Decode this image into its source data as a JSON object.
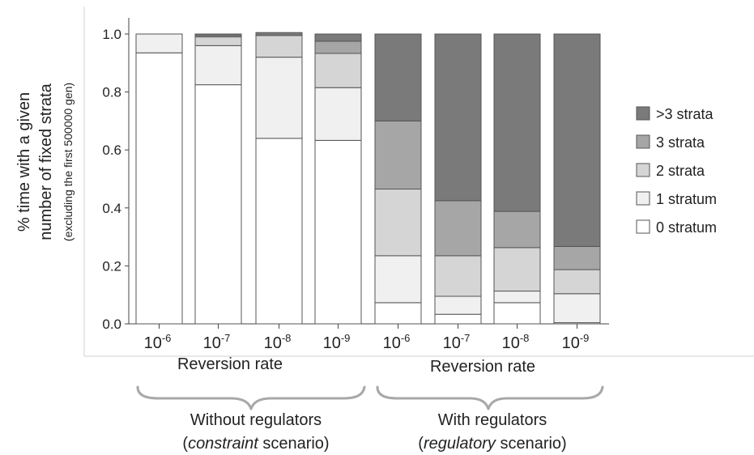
{
  "chart_data": {
    "type": "bar",
    "stacked": true,
    "ylabel_lines": [
      "% time with a given",
      "number of fixed strata"
    ],
    "ylabel_sub": "(excluding the first 500000 gen)",
    "ylim": [
      0,
      1
    ],
    "yticks": [
      "0.0",
      "0.2",
      "0.4",
      "0.6",
      "0.8",
      "1.0"
    ],
    "categories": [
      "10-6",
      "10-7",
      "10-8",
      "10-9",
      "10-6",
      "10-7",
      "10-8",
      "10-9"
    ],
    "category_labels": [
      {
        "base": "10",
        "exp": "-6"
      },
      {
        "base": "10",
        "exp": "-7"
      },
      {
        "base": "10",
        "exp": "-8"
      },
      {
        "base": "10",
        "exp": "-9"
      },
      {
        "base": "10",
        "exp": "-6"
      },
      {
        "base": "10",
        "exp": "-7"
      },
      {
        "base": "10",
        "exp": "-8"
      },
      {
        "base": "10",
        "exp": "-9"
      }
    ],
    "series": [
      {
        "name": "0 stratum",
        "color": "#ffffff",
        "values": [
          0.935,
          0.825,
          0.64,
          0.633,
          0.073,
          0.033,
          0.073,
          0.004
        ]
      },
      {
        "name": "1 stratum",
        "color": "#f0f0f0",
        "values": [
          0.065,
          0.135,
          0.28,
          0.182,
          0.162,
          0.062,
          0.04,
          0.1
        ]
      },
      {
        "name": "2 strata",
        "color": "#d5d5d5",
        "values": [
          0.0,
          0.03,
          0.075,
          0.118,
          0.23,
          0.14,
          0.15,
          0.083
        ]
      },
      {
        "name": "3 strata",
        "color": "#a6a6a6",
        "values": [
          0.0,
          0.005,
          0.0,
          0.042,
          0.235,
          0.19,
          0.125,
          0.08
        ]
      },
      {
        "name": ">3 strata",
        "color": "#7a7a7a",
        "values": [
          0.0,
          0.005,
          0.01,
          0.025,
          0.3,
          0.575,
          0.612,
          0.733
        ]
      }
    ],
    "legend_order": [
      ">3 strata",
      "3 strata",
      "2 strata",
      "1 stratum",
      "0 stratum"
    ],
    "legend_position": "right",
    "groups": [
      {
        "xlabel": "Reversion rate",
        "title_line1": "Without regulators",
        "title_line2_italic": "constraint",
        "title_line2_rest": " scenario)",
        "title_line2_open": "("
      },
      {
        "xlabel": "Reversion rate",
        "title_line1": "With regulators",
        "title_line2_italic": "regulatory",
        "title_line2_rest": " scenario)",
        "title_line2_open": "("
      }
    ],
    "grid": false
  }
}
